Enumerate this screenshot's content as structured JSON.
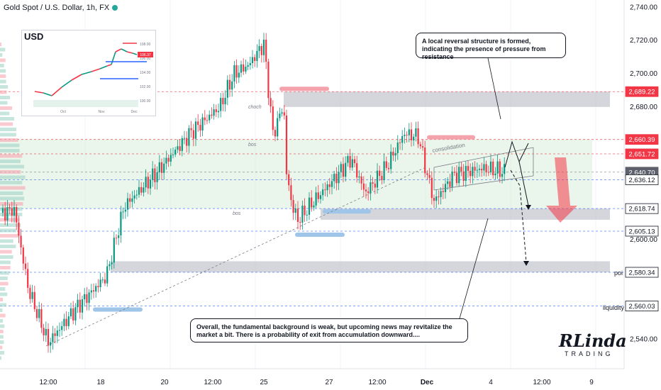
{
  "header": {
    "symbol_title": "Gold Spot / U.S. Dollar, 1h, FX",
    "status_color": "#26a69a"
  },
  "colors": {
    "up": "#089981",
    "down": "#f23645",
    "support_zone": "#d1ecd2",
    "resistance_zone": "#b2b5be",
    "bos_pink": "#f4a3ad",
    "bos_blue": "#9fc5e8",
    "price_tag_red": "#f23645",
    "price_tag_grey": "#5d606b"
  },
  "chart_data": {
    "type": "candlestick",
    "title": "Gold Spot / U.S. Dollar, 1h, FX",
    "y_axis": {
      "ticks": [
        2540.0,
        2560.0,
        2580.0,
        2600.0,
        2620.0,
        2640.0,
        2660.0,
        2680.0,
        2700.0,
        2720.0,
        2740.0
      ],
      "ylim": [
        2530,
        2745
      ]
    },
    "x_axis": {
      "ticks": [
        "12:00",
        "18",
        "20",
        "12:00",
        "25",
        "27",
        "12:00",
        "Dec",
        "4",
        "12:00",
        "9"
      ]
    },
    "price_path": [
      [
        0,
        2616
      ],
      [
        20,
        2618
      ],
      [
        40,
        2570
      ],
      [
        68,
        2538
      ],
      [
        110,
        2560
      ],
      [
        150,
        2578
      ],
      [
        175,
        2620
      ],
      [
        220,
        2640
      ],
      [
        270,
        2665
      ],
      [
        310,
        2680
      ],
      [
        330,
        2700
      ],
      [
        350,
        2705
      ],
      [
        372,
        2718
      ],
      [
        385,
        2663
      ],
      [
        400,
        2682
      ],
      [
        404,
        2640
      ],
      [
        412,
        2620
      ],
      [
        420,
        2612
      ],
      [
        440,
        2622
      ],
      [
        470,
        2636
      ],
      [
        495,
        2649
      ],
      [
        515,
        2628
      ],
      [
        545,
        2644
      ],
      [
        570,
        2664
      ],
      [
        590,
        2662
      ],
      [
        600,
        2643
      ],
      [
        612,
        2623
      ],
      [
        640,
        2639
      ],
      [
        680,
        2643
      ],
      [
        712,
        2641
      ]
    ],
    "price_labels": [
      {
        "value": 2689.22,
        "text": "2,689.22",
        "kind": "red"
      },
      {
        "value": 2660.39,
        "text": "2,660.39",
        "kind": "red"
      },
      {
        "value": 2651.72,
        "text": "2,651.72",
        "kind": "red"
      },
      {
        "value": 2640.7,
        "text": "2,640.70",
        "kind": "grey"
      },
      {
        "value": 2636.12,
        "text": "2,636.12",
        "kind": "outline"
      },
      {
        "value": 2618.74,
        "text": "2,618.74",
        "kind": "outline"
      },
      {
        "value": 2605.13,
        "text": "2,605.13",
        "kind": "outline"
      },
      {
        "value": 2580.34,
        "text": "2,580.34",
        "kind": "outline"
      },
      {
        "value": 2560.03,
        "text": "2,560.03",
        "kind": "outline"
      }
    ],
    "zones": [
      {
        "from": 2618.74,
        "to": 2660.39,
        "kind": "support"
      },
      {
        "from": 2680.0,
        "to": 2689.22,
        "kind": "resistance"
      },
      {
        "from": 2612.0,
        "to": 2618.74,
        "kind": "resistance"
      },
      {
        "from": 2580.34,
        "to": 2587.0,
        "kind": "resistance"
      }
    ],
    "annotations": {
      "choch": "choch",
      "bos_1": "bos",
      "bos_2": "bos",
      "consolidation": "consolidation",
      "poi": "poi",
      "liquidity": "liquidity"
    }
  },
  "inset": {
    "symbol": "USD",
    "y_ticks": [
      "108.00",
      "106.00",
      "104.00",
      "102.00",
      "100.00"
    ],
    "x_ticks": [
      "Oct",
      "Nov",
      "Dec"
    ],
    "last_tag": "106.37"
  },
  "callouts": {
    "top": "A local reversal structure is formed, indicating the presence of pressure from resistance",
    "bottom": "Overall, the fundamental background is weak, but upcoming news may revitalize the market a bit. There is a probability of exit from accumulation downward...."
  },
  "logo": {
    "line1": "RLinda",
    "line2": "TRADING"
  }
}
